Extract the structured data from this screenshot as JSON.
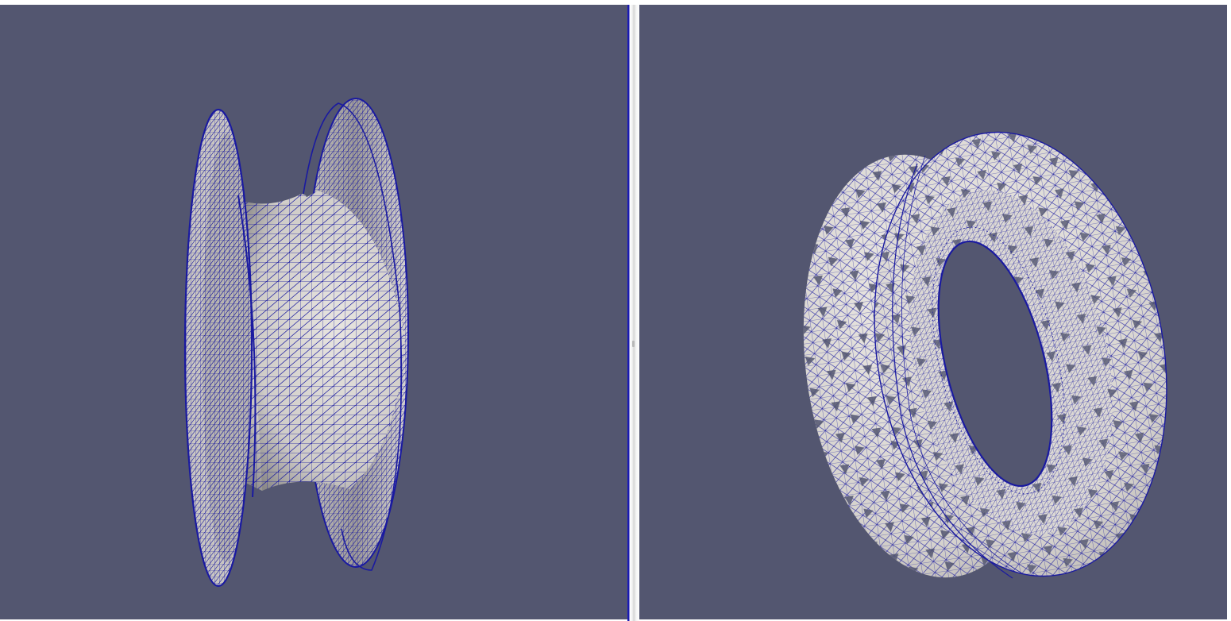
{
  "layout": {
    "views": [
      {
        "name": "render-view-left",
        "active": true
      },
      {
        "name": "render-view-right",
        "active": false
      }
    ]
  },
  "colors": {
    "background": "#535670",
    "surface": "#e4e1dc",
    "surface_shadow": "#a09d9a",
    "wireframe": "#1a1aa0",
    "active_border": "#1515aa"
  },
  "objects": {
    "left": "hourglass-mesh",
    "right": "torus-mesh"
  }
}
